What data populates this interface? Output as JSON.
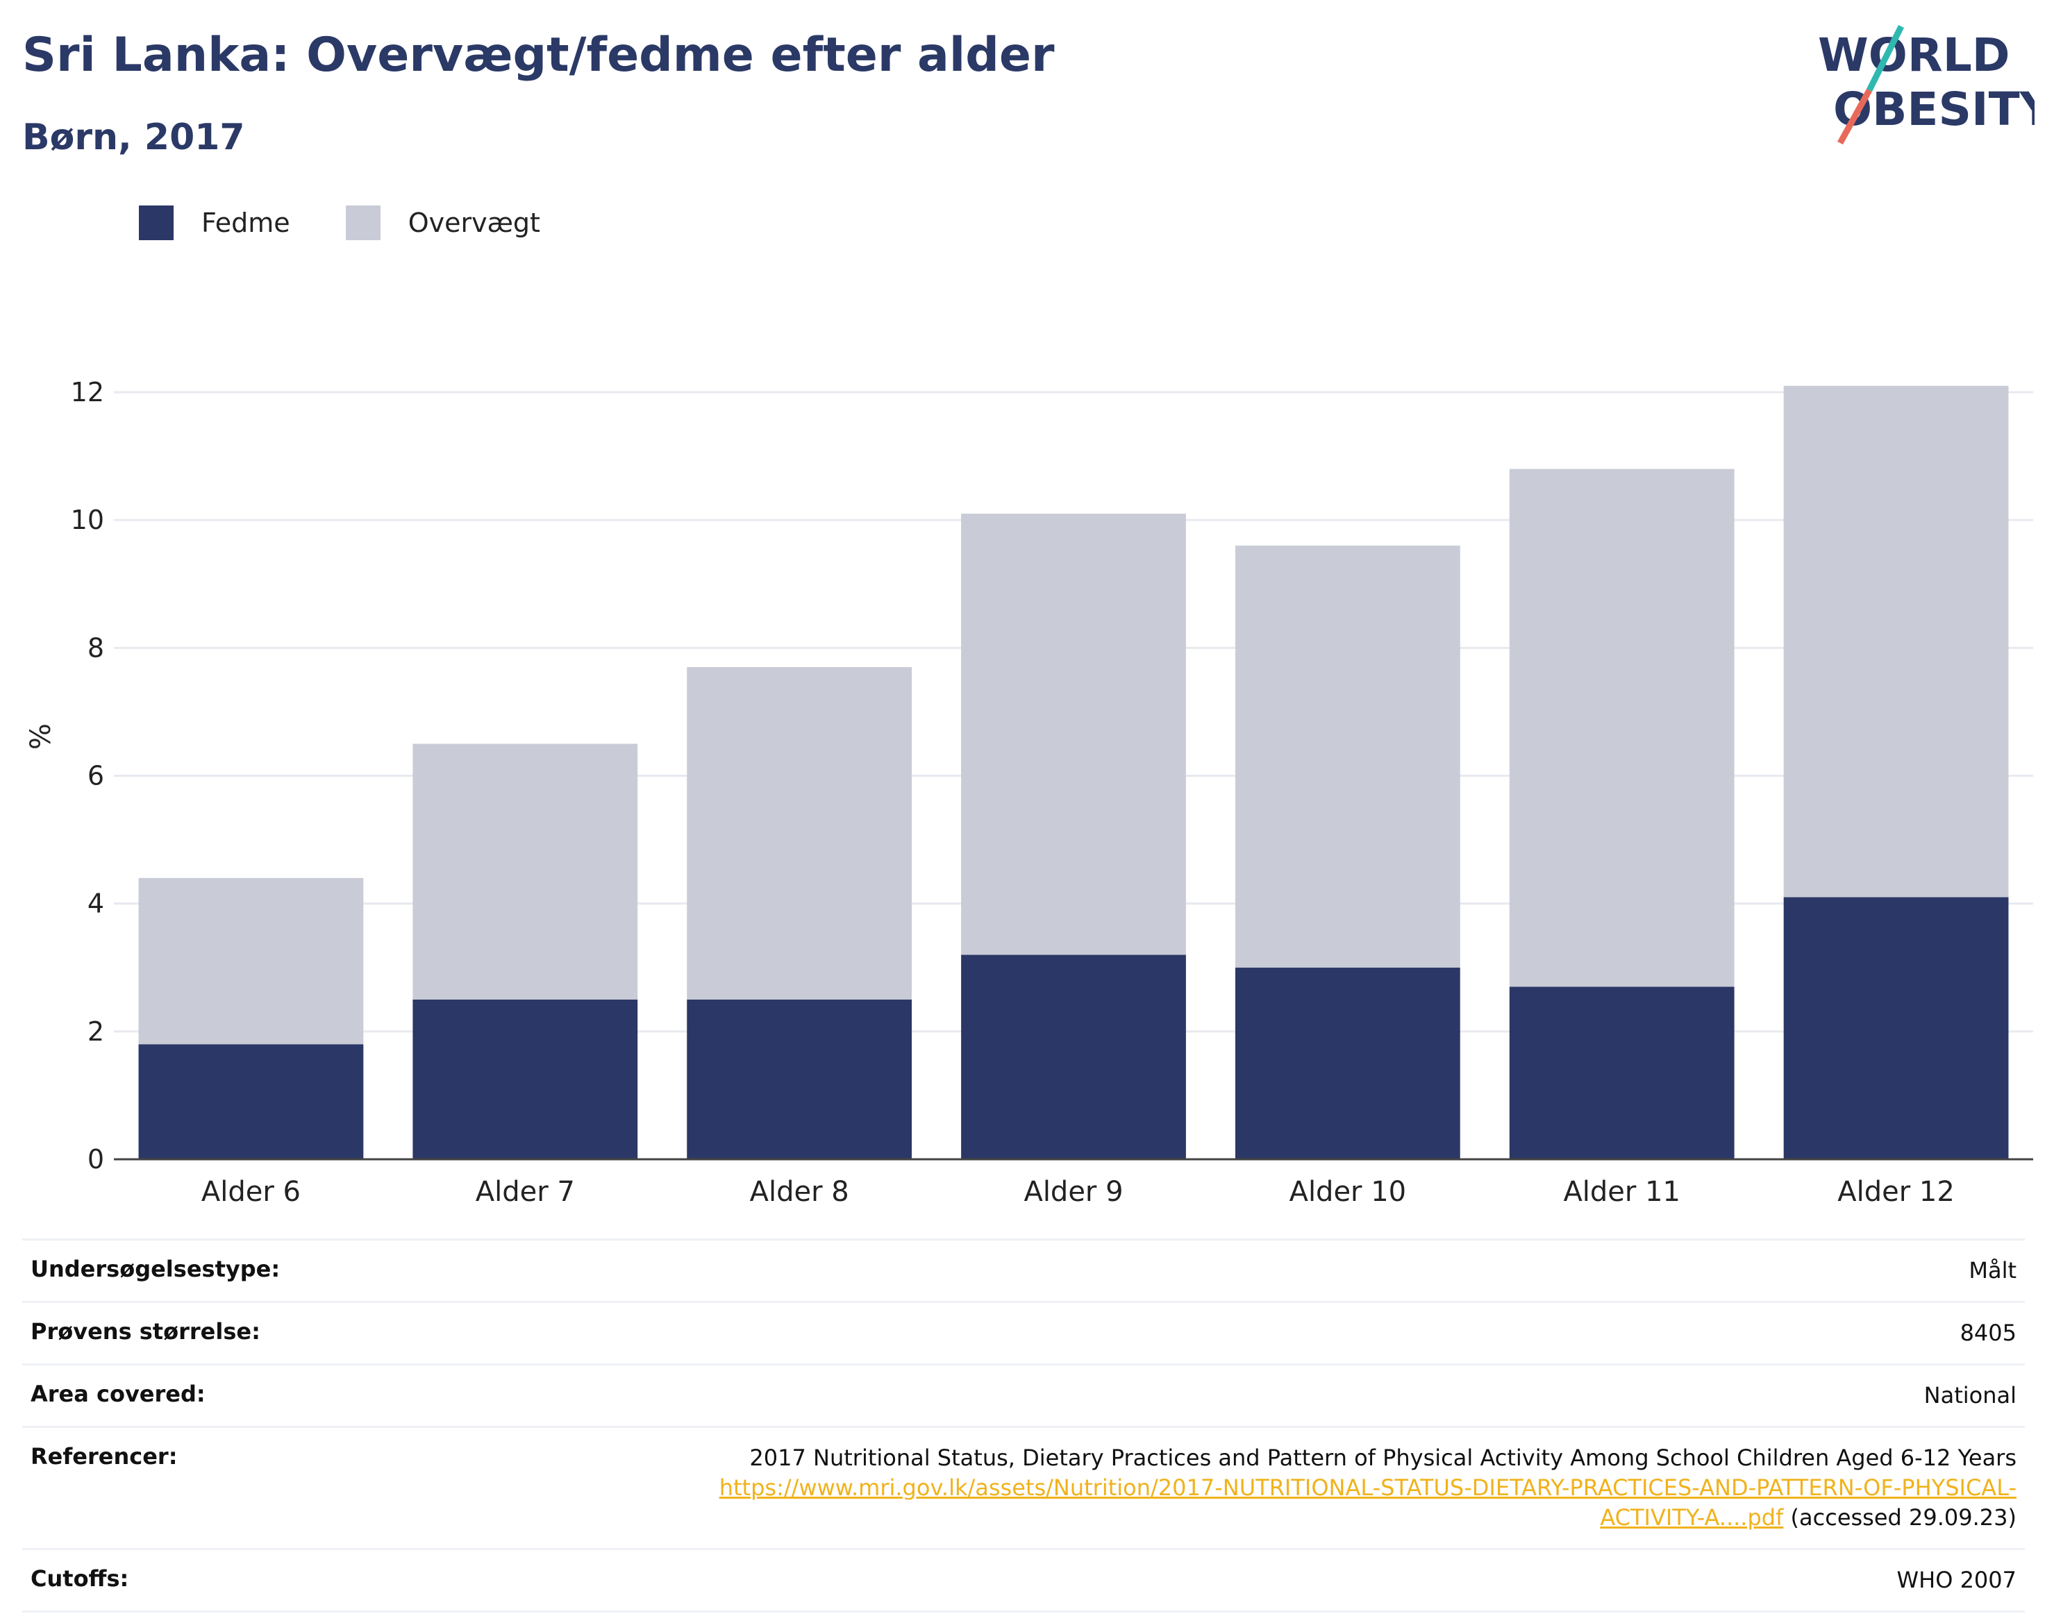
{
  "header": {
    "title": "Sri Lanka: Overvægt/fedme efter alder",
    "subtitle": "Børn, 2017",
    "logo_line1": "WORLD",
    "logo_line2": "OBESITY"
  },
  "legend": {
    "items": [
      {
        "label": "Fedme",
        "color": "#2b3766"
      },
      {
        "label": "Overvægt",
        "color": "#c9ccd7"
      }
    ]
  },
  "chart_data": {
    "type": "bar",
    "stacked": true,
    "categories": [
      "Alder 6",
      "Alder 7",
      "Alder 8",
      "Alder 9",
      "Alder 10",
      "Alder 11",
      "Alder 12"
    ],
    "series": [
      {
        "name": "Fedme",
        "color": "#2b3766",
        "values": [
          1.8,
          2.5,
          2.5,
          3.2,
          3.0,
          2.7,
          4.1
        ]
      },
      {
        "name": "Overvægt",
        "color": "#c9ccd7",
        "values": [
          2.6,
          4.0,
          5.2,
          6.9,
          6.6,
          8.1,
          8.0
        ]
      }
    ],
    "ylabel": "%",
    "ylim": [
      0,
      12
    ],
    "yticks": [
      0,
      2,
      4,
      6,
      8,
      10,
      12
    ],
    "grid": true,
    "legend_position": "top-left"
  },
  "info": {
    "survey_type_label": "Undersøgelsestype:",
    "survey_type_value": "Målt",
    "sample_size_label": "Prøvens størrelse:",
    "sample_size_value": "8405",
    "area_label": "Area covered:",
    "area_value": "National",
    "references_label": "Referencer:",
    "references_title": "2017 Nutritional Status, Dietary Practices and Pattern of Physical Activity Among School Children Aged 6-12 Years",
    "references_link_part1": "https://www.mri.gov.lk/assets/Nutrition/2017-NUTRITIONAL-STATUS-DIETARY-PRACTICES-AND-PATTERN-OF-PHYSICAL-",
    "references_link_part2": "ACTIVITY-A....pdf",
    "references_accessed": "(accessed 29.09.23)",
    "cutoffs_label": "Cutoffs:",
    "cutoffs_value": "WHO 2007"
  }
}
